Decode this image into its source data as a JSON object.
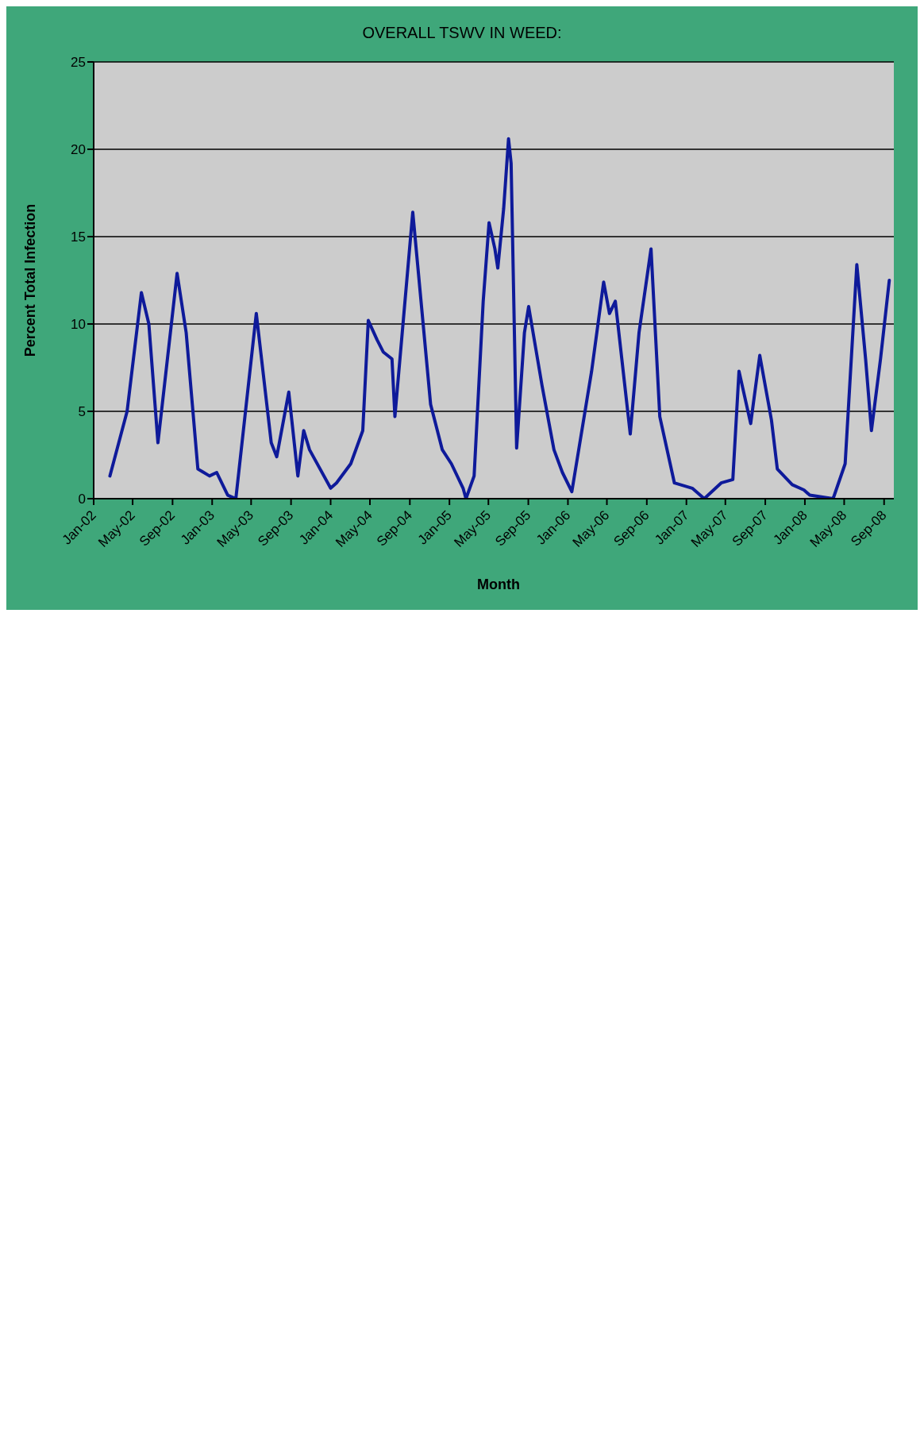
{
  "chart_data": {
    "type": "line",
    "title": "OVERALL TSWV IN WEED:",
    "xlabel": "Month",
    "ylabel": "Percent Total Infection",
    "x": [
      "2002-02-20",
      "2002-04-14",
      "2002-05-28",
      "2002-06-20",
      "2002-07-18",
      "2002-09-15",
      "2002-10-13",
      "2002-11-18",
      "2002-12-24",
      "2003-01-15",
      "2003-02-18",
      "2003-03-15",
      "2003-05-17",
      "2003-07-02",
      "2003-07-19",
      "2003-08-25",
      "2003-09-22",
      "2003-10-10",
      "2003-10-28",
      "2004-01-01",
      "2004-01-19",
      "2004-03-03",
      "2004-04-09",
      "2004-04-26",
      "2004-05-23",
      "2004-06-11",
      "2004-07-08",
      "2004-07-17",
      "2004-09-10",
      "2004-11-04",
      "2004-12-10",
      "2005-01-07",
      "2005-02-12",
      "2005-02-21",
      "2005-03-18",
      "2005-04-15",
      "2005-05-03",
      "2005-05-21",
      "2005-05-30",
      "2005-06-17",
      "2005-07-02",
      "2005-07-10",
      "2005-07-27",
      "2005-08-20",
      "2005-09-02",
      "2005-10-13",
      "2005-11-19",
      "2005-12-15",
      "2006-01-13",
      "2006-03-15",
      "2006-04-21",
      "2006-05-09",
      "2006-05-27",
      "2006-06-16",
      "2006-07-12",
      "2006-08-08",
      "2006-09-14",
      "2006-10-11",
      "2006-11-25",
      "2007-01-19",
      "2007-02-25",
      "2007-04-18",
      "2007-05-24",
      "2007-06-12",
      "2007-07-18",
      "2007-08-15",
      "2007-09-20",
      "2007-10-08",
      "2007-11-23",
      "2007-12-29",
      "2008-01-16",
      "2008-03-28",
      "2008-05-04",
      "2008-06-09",
      "2008-07-06",
      "2008-07-24",
      "2008-08-21",
      "2008-09-17"
    ],
    "series": [
      {
        "color": "#0e1a9a",
        "values": [
          1.3,
          5.0,
          11.8,
          10.0,
          3.2,
          12.9,
          9.5,
          1.7,
          1.3,
          1.5,
          0.2,
          0,
          10.6,
          3.2,
          2.4,
          6.1,
          1.3,
          3.9,
          2.8,
          0.6,
          0.9,
          2.0,
          3.9,
          10.2,
          9.1,
          8.4,
          8.0,
          4.7,
          16.4,
          5.4,
          2.8,
          2.0,
          0.6,
          0,
          1.3,
          11.3,
          15.8,
          14.3,
          13.2,
          16.6,
          20.6,
          19.2,
          2.9,
          9.5,
          11.0,
          6.5,
          2.8,
          1.5,
          0.4,
          7.3,
          12.4,
          10.6,
          11.3,
          8.0,
          3.7,
          9.5,
          14.3,
          4.7,
          0.9,
          0.6,
          0,
          0.9,
          1.1,
          7.3,
          4.3,
          8.2,
          4.5,
          1.7,
          0.8,
          0.5,
          0.2,
          0,
          2.0,
          13.4,
          8.0,
          3.9,
          8.0,
          12.5
        ]
      }
    ],
    "xlim": [
      "2002-01-01",
      "2008-10-01"
    ],
    "xticks": [
      {
        "value": "2002-01-01",
        "label": "Jan-02"
      },
      {
        "value": "2002-05-01",
        "label": "May-02"
      },
      {
        "value": "2002-09-01",
        "label": "Sep-02"
      },
      {
        "value": "2003-01-01",
        "label": "Jan-03"
      },
      {
        "value": "2003-05-01",
        "label": "May-03"
      },
      {
        "value": "2003-09-01",
        "label": "Sep-03"
      },
      {
        "value": "2004-01-01",
        "label": "Jan-04"
      },
      {
        "value": "2004-05-01",
        "label": "May-04"
      },
      {
        "value": "2004-09-01",
        "label": "Sep-04"
      },
      {
        "value": "2005-01-01",
        "label": "Jan-05"
      },
      {
        "value": "2005-05-01",
        "label": "May-05"
      },
      {
        "value": "2005-09-01",
        "label": "Sep-05"
      },
      {
        "value": "2006-01-01",
        "label": "Jan-06"
      },
      {
        "value": "2006-05-01",
        "label": "May-06"
      },
      {
        "value": "2006-09-01",
        "label": "Sep-06"
      },
      {
        "value": "2007-01-01",
        "label": "Jan-07"
      },
      {
        "value": "2007-05-01",
        "label": "May-07"
      },
      {
        "value": "2007-09-01",
        "label": "Sep-07"
      },
      {
        "value": "2008-01-01",
        "label": "Jan-08"
      },
      {
        "value": "2008-05-01",
        "label": "May-08"
      },
      {
        "value": "2008-09-01",
        "label": "Sep-08"
      }
    ],
    "ylim": [
      0,
      25
    ],
    "yticks": [
      0,
      5,
      10,
      15,
      20,
      25
    ],
    "grid": "y",
    "marker": "none",
    "line_style": "solid"
  }
}
